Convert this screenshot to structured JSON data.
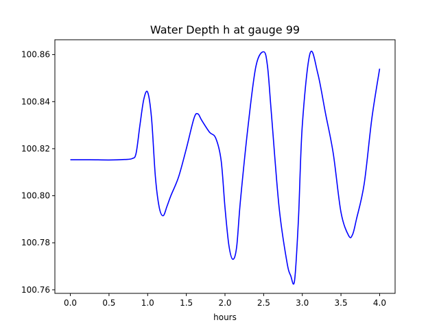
{
  "chart_data": {
    "type": "line",
    "title": "Water Depth h at gauge 99",
    "xlabel": "hours",
    "ylabel": "",
    "xlim": [
      -0.2,
      4.2
    ],
    "ylim": [
      100.7585,
      100.8663
    ],
    "xticks": [
      0.0,
      0.5,
      1.0,
      1.5,
      2.0,
      2.5,
      3.0,
      3.5,
      4.0
    ],
    "xtick_labels": [
      "0.0",
      "0.5",
      "1.0",
      "1.5",
      "2.0",
      "2.5",
      "3.0",
      "3.5",
      "4.0"
    ],
    "yticks": [
      100.76,
      100.78,
      100.8,
      100.82,
      100.84,
      100.86
    ],
    "ytick_labels": [
      "100.76",
      "100.78",
      "100.80",
      "100.82",
      "100.84",
      "100.86"
    ],
    "grid": false,
    "series": [
      {
        "color": "#0000ff",
        "x": [
          0.0,
          0.25,
          0.5,
          0.7,
          0.8,
          0.85,
          0.9,
          0.95,
          1.0,
          1.05,
          1.1,
          1.15,
          1.2,
          1.25,
          1.3,
          1.4,
          1.5,
          1.6,
          1.65,
          1.7,
          1.8,
          1.88,
          1.95,
          2.0,
          2.05,
          2.1,
          2.15,
          2.2,
          2.3,
          2.4,
          2.5,
          2.55,
          2.6,
          2.7,
          2.8,
          2.85,
          2.9,
          2.95,
          3.0,
          3.1,
          3.2,
          3.3,
          3.4,
          3.5,
          3.6,
          3.65,
          3.7,
          3.8,
          3.9,
          4.0
        ],
        "y": [
          100.8153,
          100.8153,
          100.8152,
          100.8154,
          100.8158,
          100.818,
          100.83,
          100.841,
          100.844,
          100.833,
          100.808,
          100.795,
          100.7915,
          100.7955,
          100.8,
          100.808,
          100.82,
          100.833,
          100.8348,
          100.832,
          100.827,
          100.8245,
          100.815,
          100.795,
          100.779,
          100.773,
          100.778,
          100.798,
          100.83,
          100.855,
          100.8612,
          100.855,
          100.835,
          100.795,
          100.772,
          100.766,
          100.764,
          100.79,
          100.83,
          100.8605,
          100.852,
          100.835,
          100.818,
          100.793,
          100.783,
          100.7835,
          100.79,
          100.805,
          100.833,
          100.854
        ]
      }
    ]
  }
}
